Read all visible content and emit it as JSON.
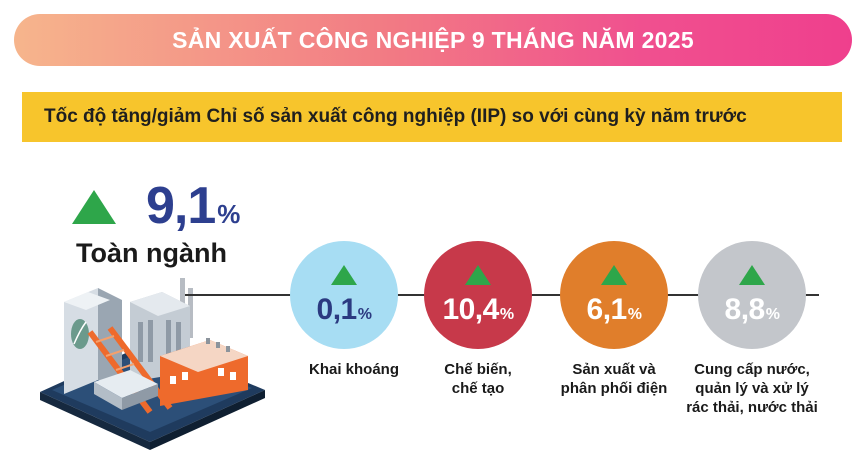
{
  "header": {
    "title": "SẢN XUẤT CÔNG NGHIỆP 9 THÁNG NĂM 2025"
  },
  "subtitle": "Tốc độ tăng/giảm Chỉ số sản xuất công nghiệp (IIP) so với cùng kỳ năm trước",
  "total": {
    "value": "9,1",
    "unit": "%",
    "label": "Toàn ngành",
    "direction": "up"
  },
  "sectors": [
    {
      "value": "0,1",
      "unit": "%",
      "direction": "up",
      "color": "#a7ddf3",
      "label_lines": [
        "Khai khoáng"
      ]
    },
    {
      "value": "10,4",
      "unit": "%",
      "direction": "up",
      "color": "#c7394a",
      "label_lines": [
        "Chế biến,",
        "chế tạo"
      ]
    },
    {
      "value": "6,1",
      "unit": "%",
      "direction": "up",
      "color": "#e07e2b",
      "label_lines": [
        "Sản xuất và",
        "phân phối điện"
      ]
    },
    {
      "value": "8,8",
      "unit": "%",
      "direction": "up",
      "color": "#c3c6cb",
      "label_lines": [
        "Cung cấp nước,",
        "quản lý và xử lý",
        "rác thải, nước thải"
      ]
    }
  ],
  "colors": {
    "increase_arrow": "#2ea64a",
    "subtitle_bar": "#f7c52c",
    "total_value": "#2d3f8f"
  }
}
